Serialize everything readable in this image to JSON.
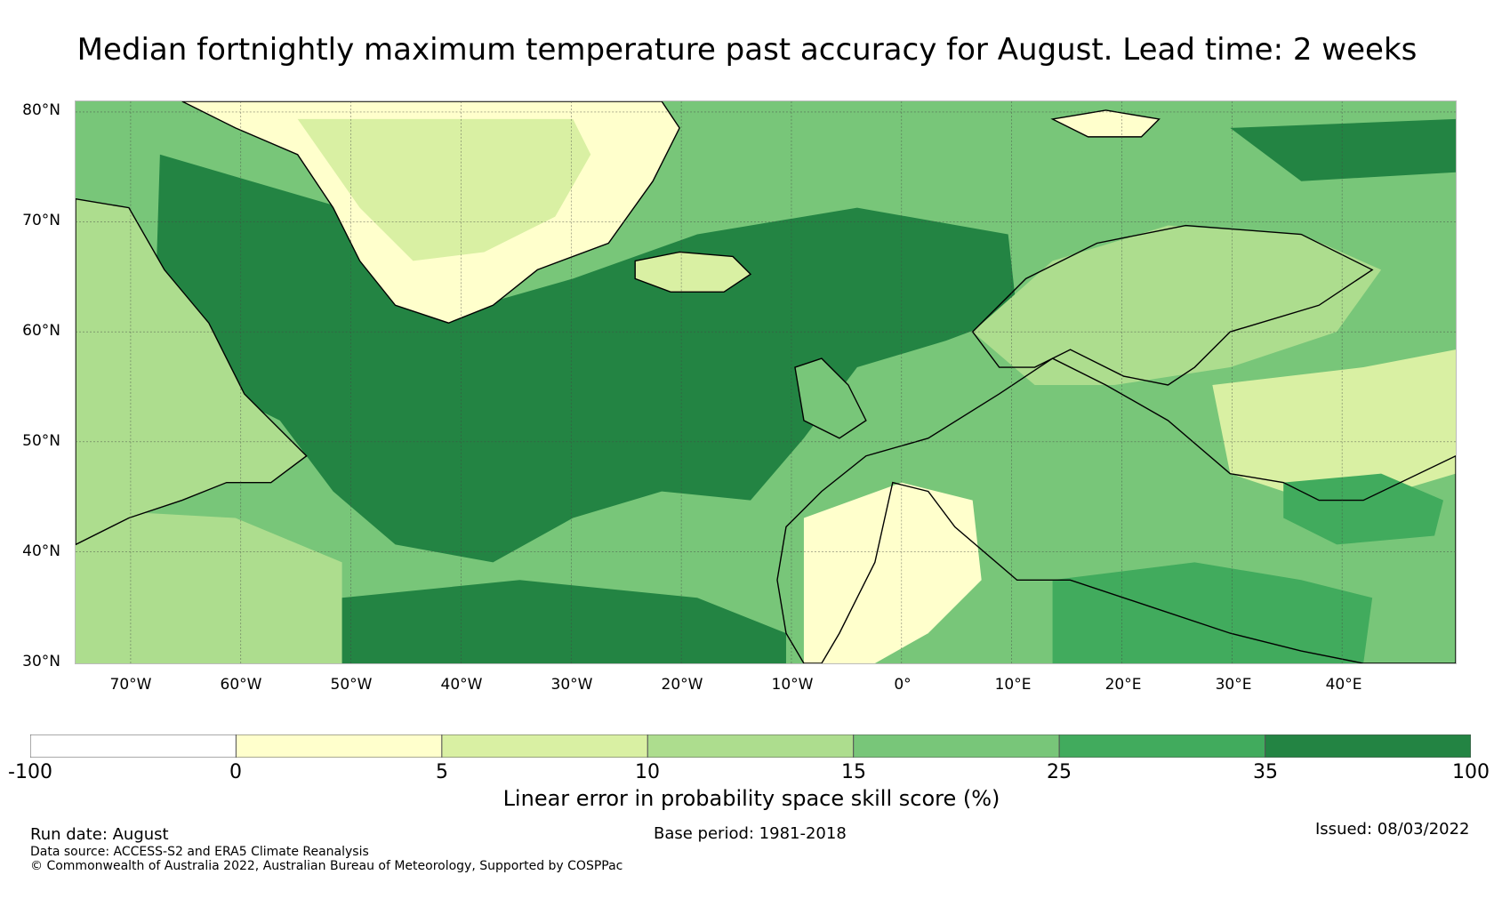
{
  "title": "Median fortnightly maximum temperature past accuracy for August. Lead time: 2 weeks",
  "lat_labels": [
    "80°N",
    "70°N",
    "60°N",
    "50°N",
    "40°N",
    "30°N"
  ],
  "lon_labels": [
    "70°W",
    "60°W",
    "50°W",
    "40°W",
    "30°W",
    "20°W",
    "10°W",
    "0°",
    "10°E",
    "20°E",
    "30°E",
    "40°E"
  ],
  "colorbar": {
    "label": "Linear error in probability space skill score (%)",
    "ticks": [
      "-100",
      "0",
      "5",
      "10",
      "15",
      "25",
      "35",
      "100"
    ],
    "colors": [
      "#ffffff",
      "#ffffcc",
      "#d9f0a3",
      "#addd8e",
      "#78c679",
      "#41ab5d",
      "#238443"
    ]
  },
  "footer": {
    "run_date": "Run date: August",
    "base_period": "Base period: 1981-2018",
    "issued": "Issued: 08/03/2022",
    "data_source": "Data source: ACCESS-S2 and ERA5 Climate Reanalysis",
    "copyright": "© Commonwealth of Australia 2022, Australian Bureau of Meteorology, Supported by COSPPac"
  }
}
